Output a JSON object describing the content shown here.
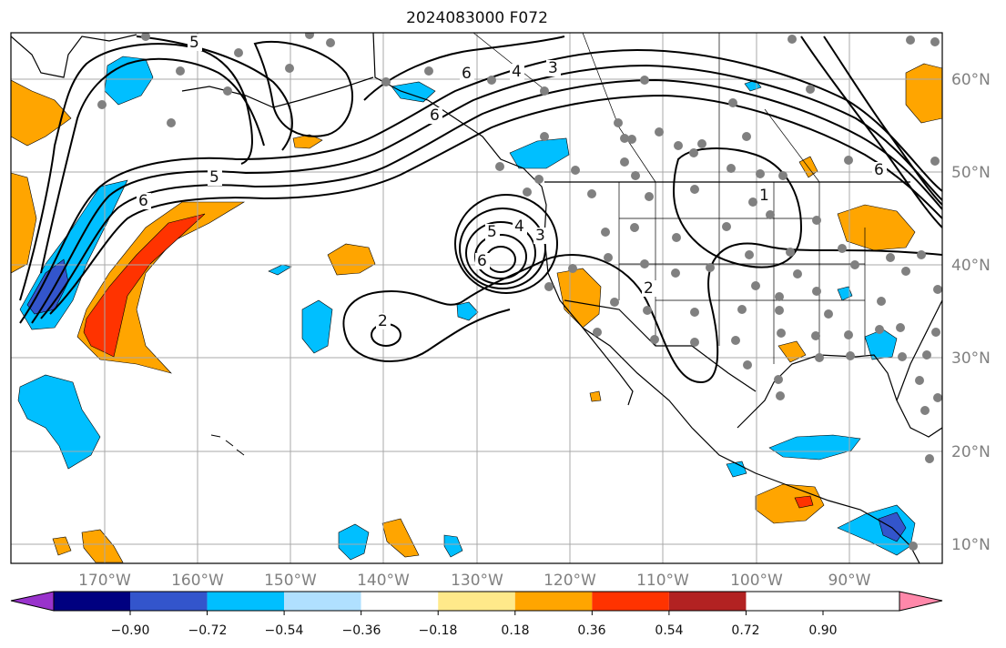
{
  "title": "2024083000 F072",
  "lon_labels": [
    "170°W",
    "160°W",
    "150°W",
    "140°W",
    "130°W",
    "120°W",
    "110°W",
    "100°W",
    "90°W"
  ],
  "lat_labels": [
    "60°N",
    "50°N",
    "40°N",
    "30°N",
    "20°N",
    "10°N"
  ],
  "colorbar": {
    "colors": [
      "#9933cc",
      "#000080",
      "#3355cc",
      "#00bfff",
      "#b0e0ff",
      "#ffffff",
      "#ffe98a",
      "#ffa500",
      "#ff3300",
      "#b22222",
      "#ff88aa"
    ],
    "tick_labels": [
      "−0.90",
      "−0.72",
      "−0.54",
      "−0.36",
      "−0.18",
      "0.18",
      "0.36",
      "0.54",
      "0.72",
      "0.90"
    ]
  },
  "contour_labels": [
    "5",
    "6",
    "5",
    "6",
    "6",
    "4",
    "3",
    "2",
    "5",
    "4",
    "3",
    "6",
    "2",
    "1",
    "6"
  ],
  "colors": {
    "positive": "#ffa500",
    "strong_positive": "#ff3300",
    "negative": "#00bfff",
    "strong_negative": "#3355cc",
    "station": "#808080"
  }
}
